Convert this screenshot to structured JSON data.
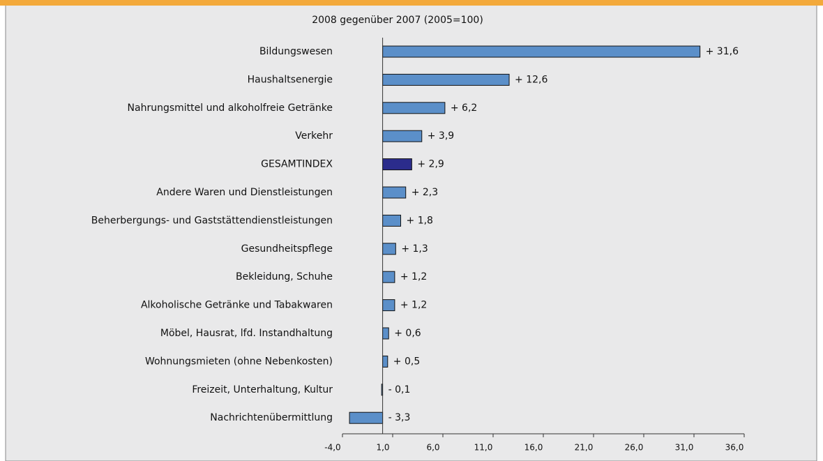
{
  "chart_data": {
    "type": "barh",
    "title": "2008 gegenüber 2007 (2005=100)",
    "categories": [
      "Bildungswesen",
      "Haushaltsenergie",
      "Nahrungsmittel und alkoholfreie Getränke",
      "Verkehr",
      "GESAMTINDEX",
      "Andere Waren und Dienstleistungen",
      "Beherbergungs- und Gaststättendienstleistungen",
      "Gesundheitspflege",
      "Bekleidung, Schuhe",
      "Alkoholische Getränke und Tabakwaren",
      "Möbel, Hausrat, lfd. Instandhaltung",
      "Wohnungsmieten (ohne Nebenkosten)",
      "Freizeit, Unterhaltung, Kultur",
      "Nachrichtenübermittlung"
    ],
    "values": [
      31.6,
      12.6,
      6.2,
      3.9,
      2.9,
      2.3,
      1.8,
      1.3,
      1.2,
      1.2,
      0.6,
      0.5,
      -0.1,
      -3.3
    ],
    "value_labels": [
      "+ 31,6",
      "+ 12,6",
      "+ 6,2",
      "+ 3,9",
      "+ 2,9",
      "+ 2,3",
      "+ 1,8",
      "+ 1,3",
      "+ 1,2",
      "+ 1,2",
      "+ 0,6",
      "+ 0,5",
      "- 0,1",
      "- 3,3"
    ],
    "colors": [
      "#5b8fc9",
      "#5b8fc9",
      "#5b8fc9",
      "#5b8fc9",
      "#2b2c8c",
      "#5b8fc9",
      "#5b8fc9",
      "#5b8fc9",
      "#5b8fc9",
      "#5b8fc9",
      "#5b8fc9",
      "#5b8fc9",
      "#5b8fc9",
      "#5b8fc9"
    ],
    "xlim": [
      -4,
      36
    ],
    "xticks": [
      {
        "value": -4,
        "label": "-4,0"
      },
      {
        "value": 1,
        "label": "1,0"
      },
      {
        "value": 6,
        "label": "6,0"
      },
      {
        "value": 11,
        "label": "11,0"
      },
      {
        "value": 16,
        "label": "16,0"
      },
      {
        "value": 21,
        "label": "21,0"
      },
      {
        "value": 26,
        "label": "26,0"
      },
      {
        "value": 31,
        "label": "31,0"
      },
      {
        "value": 36,
        "label": "36,0"
      }
    ]
  }
}
